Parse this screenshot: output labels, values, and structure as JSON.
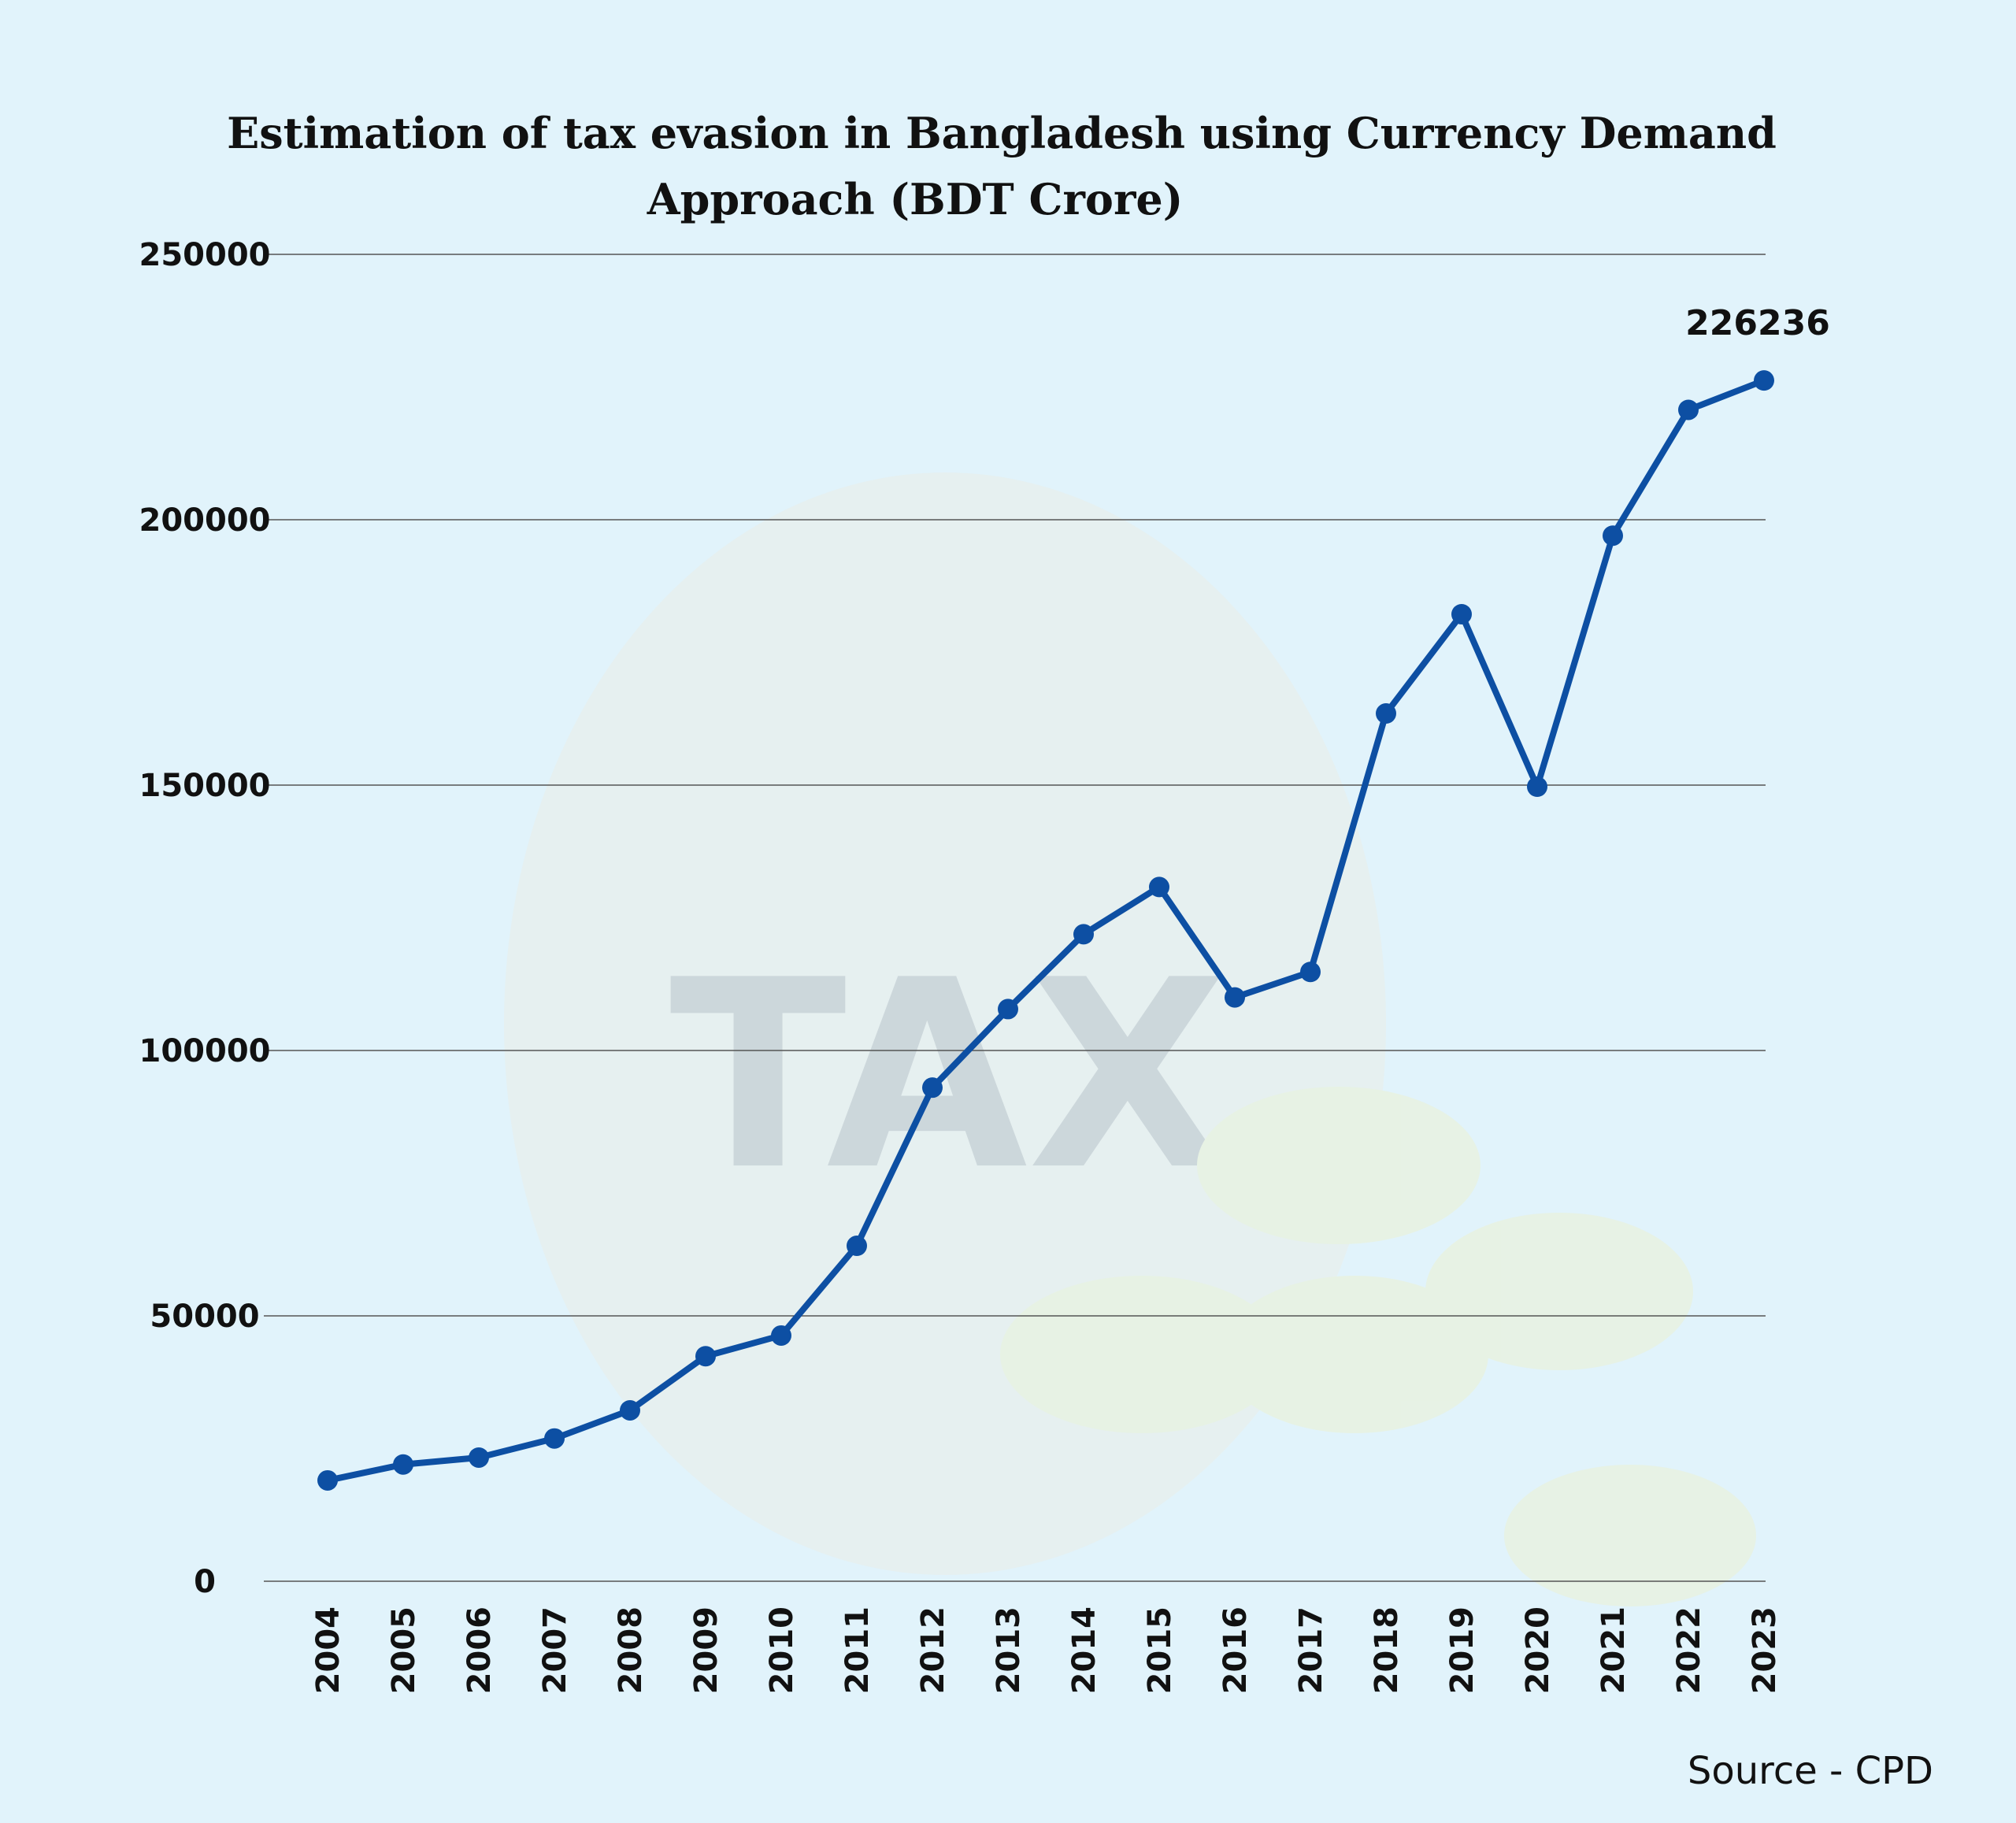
{
  "chart_data": {
    "type": "line",
    "title": "Estimation of tax evasion in Bangladesh using Currency Demand Approach (BDT Crore)",
    "title_lines": [
      "Estimation of tax evasion in Bangladesh using Currency Demand",
      "Approach (BDT Crore)"
    ],
    "xlabel": "",
    "ylabel": "",
    "ylim": [
      0,
      250000
    ],
    "yticks": [
      "0",
      "50000",
      "100000",
      "150000",
      "200000",
      "250000"
    ],
    "grid": true,
    "categories": [
      "2004",
      "2005",
      "2006",
      "2007",
      "2008",
      "2009",
      "2010",
      "2011",
      "2012",
      "2013",
      "2014",
      "2015",
      "2016",
      "2017",
      "2018",
      "2019",
      "2020",
      "2021",
      "2022",
      "2023"
    ],
    "series": [
      {
        "values": [
          19000,
          22000,
          23300,
          26900,
          32200,
          42400,
          46300,
          63200,
          93000,
          107800,
          121900,
          130800,
          110000,
          114800,
          163500,
          182200,
          149700,
          197000,
          220700,
          226236
        ]
      }
    ],
    "data_labels": [
      {
        "category": "2023",
        "text": "226236"
      }
    ],
    "line_color": "#0d4fa3",
    "background_color": "#e1f3fb"
  },
  "source": "Source - CPD"
}
